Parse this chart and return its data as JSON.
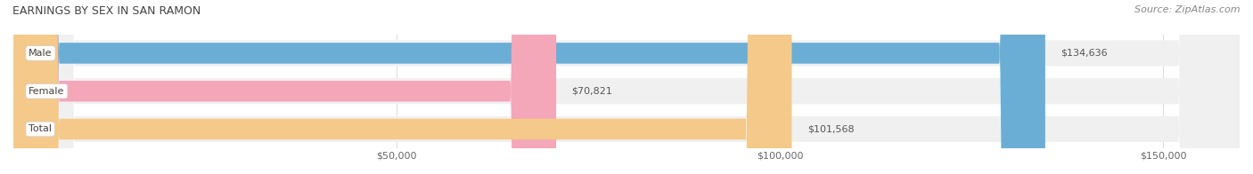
{
  "title": "EARNINGS BY SEX IN SAN RAMON",
  "source": "Source: ZipAtlas.com",
  "categories": [
    "Male",
    "Female",
    "Total"
  ],
  "values": [
    134636,
    70821,
    101568
  ],
  "bar_colors": [
    "#6aaed6",
    "#f4a7b9",
    "#f5c98a"
  ],
  "label_colors": [
    "#4a90c4",
    "#e07090",
    "#e8a050"
  ],
  "track_color": "#f0f0f0",
  "label_bg": "#ffffff",
  "value_labels": [
    "$134,636",
    "$70,821",
    "$101,568"
  ],
  "xlim": [
    0,
    160000
  ],
  "xticks": [
    50000,
    100000,
    150000
  ],
  "xtick_labels": [
    "$50,000",
    "$100,000",
    "$150,000"
  ],
  "figsize": [
    14.06,
    1.96
  ],
  "dpi": 100,
  "title_fontsize": 9,
  "source_fontsize": 8,
  "bar_label_fontsize": 8,
  "value_fontsize": 8,
  "tick_fontsize": 8
}
